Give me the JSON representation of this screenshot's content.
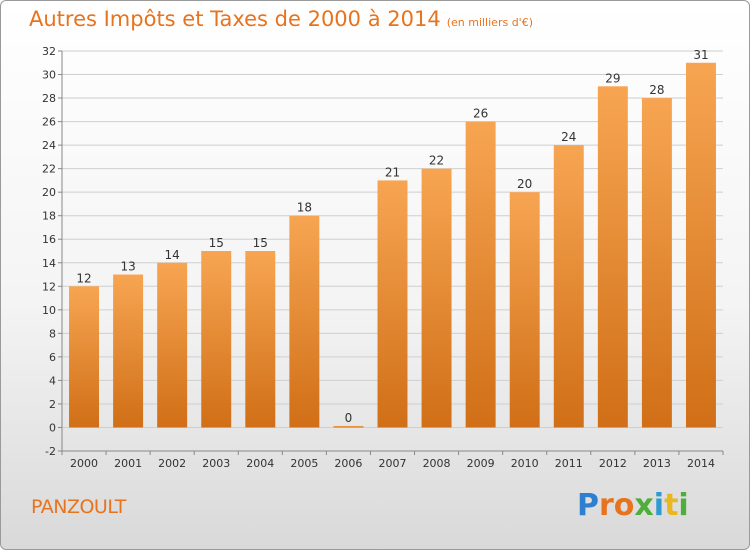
{
  "title": "Autres Impôts et Taxes de 2000 à 2014",
  "unit": "(en milliers d'€)",
  "place": "PANZOULT",
  "logo": {
    "letters": [
      "P",
      "r",
      "o",
      "x",
      "i",
      "t",
      "i"
    ]
  },
  "colors": {
    "bar_top": "#f7a552",
    "bar_bottom": "#d06f17",
    "accent": "#e8731e"
  },
  "chart_data": {
    "type": "bar",
    "categories": [
      "2000",
      "2001",
      "2002",
      "2003",
      "2004",
      "2005",
      "2006",
      "2007",
      "2008",
      "2009",
      "2010",
      "2011",
      "2012",
      "2013",
      "2014"
    ],
    "values": [
      12,
      13,
      14,
      15,
      15,
      18,
      0,
      21,
      22,
      26,
      20,
      24,
      29,
      28,
      31
    ],
    "title": "Autres Impôts et Taxes de 2000 à 2014",
    "ylim": [
      -2,
      32
    ],
    "yticks": [
      -2,
      0,
      2,
      4,
      6,
      8,
      10,
      12,
      14,
      16,
      18,
      20,
      22,
      24,
      26,
      28,
      30,
      32
    ],
    "grid": true
  }
}
